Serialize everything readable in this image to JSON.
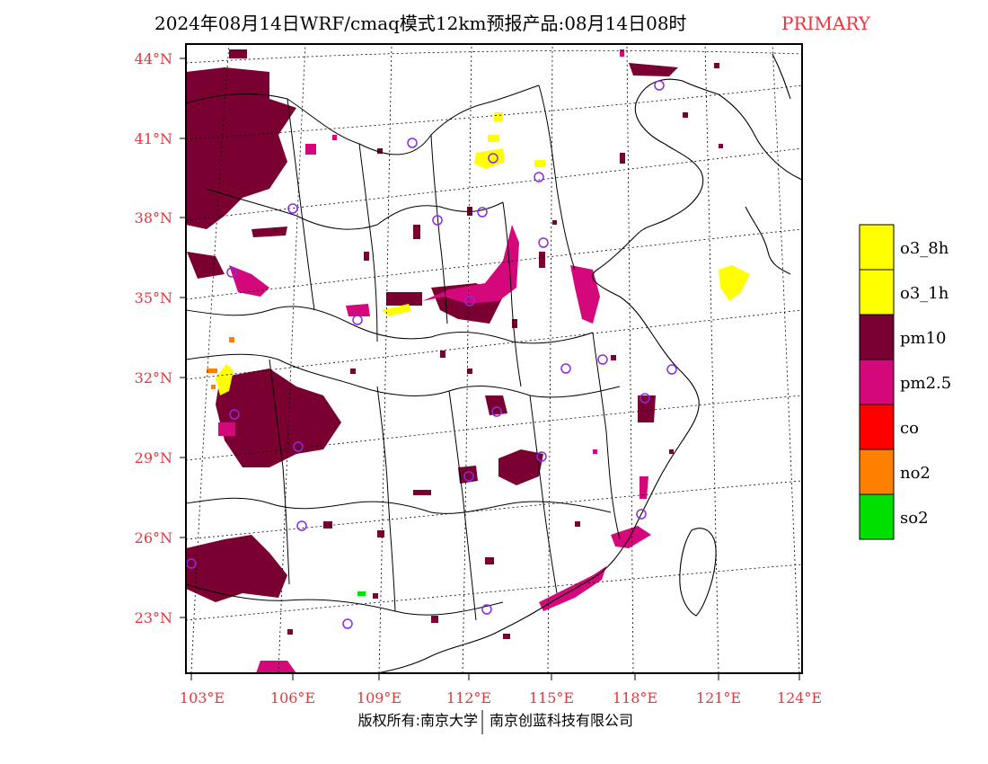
{
  "header": {
    "title": "2024年08月14日WRF/cmaq模式12km预报产品:08月14日08时",
    "pollutant_tag": "PRIMARY"
  },
  "axes": {
    "lat_labels": [
      "44°N",
      "41°N",
      "38°N",
      "35°N",
      "32°N",
      "29°N",
      "26°N",
      "23°N"
    ],
    "lon_labels": [
      "103°E",
      "106°E",
      "109°E",
      "112°E",
      "115°E",
      "118°E",
      "121°E",
      "124°E"
    ]
  },
  "legend": {
    "items": [
      {
        "label": "o3_8h",
        "color": "#ffff00"
      },
      {
        "label": "o3_1h",
        "color": "#ffff00"
      },
      {
        "label": "pm10",
        "color": "#7a0032"
      },
      {
        "label": "pm2.5",
        "color": "#d4087a"
      },
      {
        "label": "co",
        "color": "#ff0000"
      },
      {
        "label": "no2",
        "color": "#ff7f00"
      },
      {
        "label": "so2",
        "color": "#00e000"
      }
    ]
  },
  "footer": {
    "credit_left": "版权所有:南京大学",
    "credit_right": "南京创蓝科技有限公司"
  },
  "colors": {
    "pm10": "#7a0032",
    "pm25": "#d4087a",
    "o3": "#ffff00",
    "no2": "#ff7f00",
    "so2": "#00e000",
    "accent": "#e8353b",
    "site": "#8a2be2"
  }
}
